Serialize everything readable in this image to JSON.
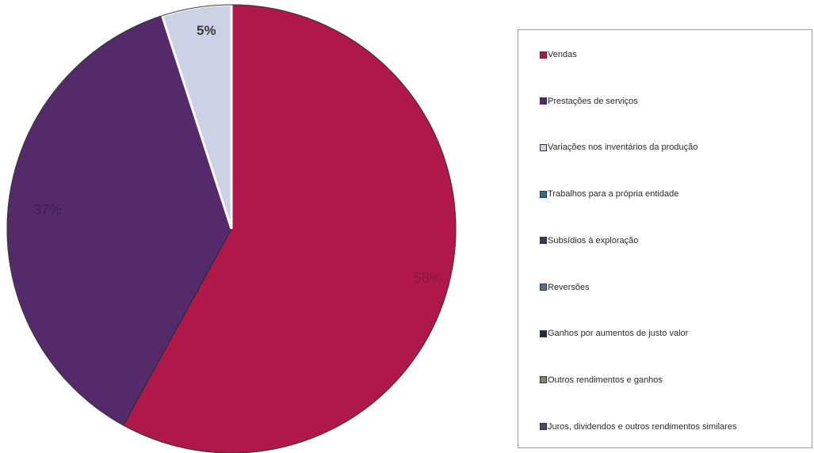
{
  "chart_data": {
    "type": "pie",
    "title": "",
    "categories": [
      "Vendas",
      "Prestações de serviços",
      "Variações nos inventários da produção",
      "Trabalhos para a própria entidade",
      "Subsídios à exploração",
      "Reversões",
      "Ganhos por aumentos de justo valor",
      "Outros rendimentos e ganhos",
      "Juros, dividendos e outros rendimentos similares"
    ],
    "values": [
      58,
      37,
      5,
      0,
      0,
      0,
      0,
      0,
      0
    ],
    "data_labels": [
      "58%",
      "37%",
      "5%",
      "",
      "",
      "",
      "",
      "",
      ""
    ],
    "colors": [
      "#B0184C",
      "#552A6B",
      "#CBD2E6",
      "#2E6E8E",
      "#3A3A5A",
      "#5A6E8A",
      "#1F2A40",
      "#7A8A6A",
      "#4A4A6A"
    ],
    "legend_position": "right"
  }
}
